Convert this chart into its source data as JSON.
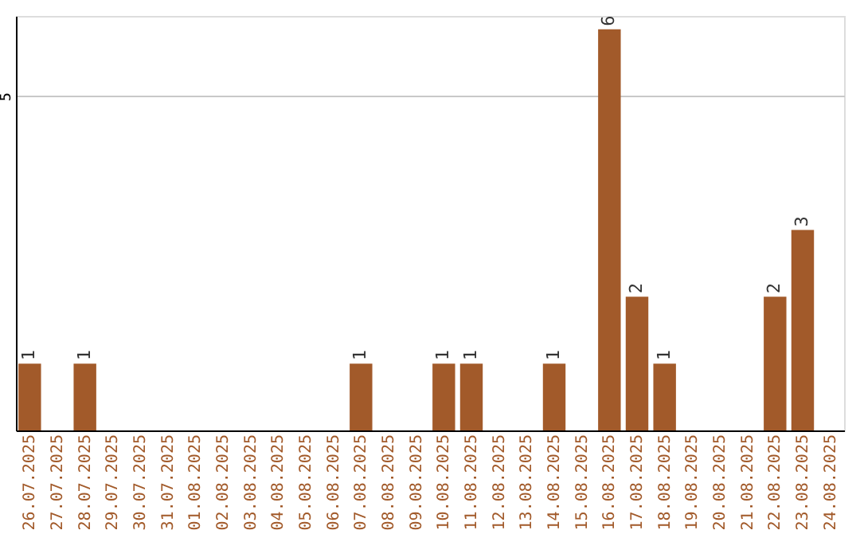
{
  "chart_data": {
    "type": "bar",
    "categories": [
      "26.07.2025",
      "27.07.2025",
      "28.07.2025",
      "29.07.2025",
      "30.07.2025",
      "31.07.2025",
      "01.08.2025",
      "02.08.2025",
      "03.08.2025",
      "04.08.2025",
      "05.08.2025",
      "06.08.2025",
      "07.08.2025",
      "08.08.2025",
      "09.08.2025",
      "10.08.2025",
      "11.08.2025",
      "12.08.2025",
      "13.08.2025",
      "14.08.2025",
      "15.08.2025",
      "16.08.2025",
      "17.08.2025",
      "18.08.2025",
      "19.08.2025",
      "20.08.2025",
      "21.08.2025",
      "22.08.2025",
      "23.08.2025",
      "24.08.2025"
    ],
    "values": [
      1,
      0,
      1,
      0,
      0,
      0,
      0,
      0,
      0,
      0,
      0,
      0,
      1,
      0,
      0,
      1,
      1,
      0,
      0,
      1,
      0,
      6,
      2,
      1,
      0,
      0,
      0,
      2,
      3,
      0
    ],
    "value_labels": [
      "1",
      null,
      "1",
      null,
      null,
      null,
      null,
      null,
      null,
      null,
      null,
      null,
      "1",
      null,
      null,
      "1",
      "1",
      null,
      null,
      "1",
      null,
      "6",
      "2",
      "1",
      null,
      null,
      null,
      "2",
      "3",
      null
    ],
    "color": "#a25a2a",
    "ylim": [
      0,
      6.2
    ],
    "yticks": [
      5
    ],
    "grid": "y"
  }
}
